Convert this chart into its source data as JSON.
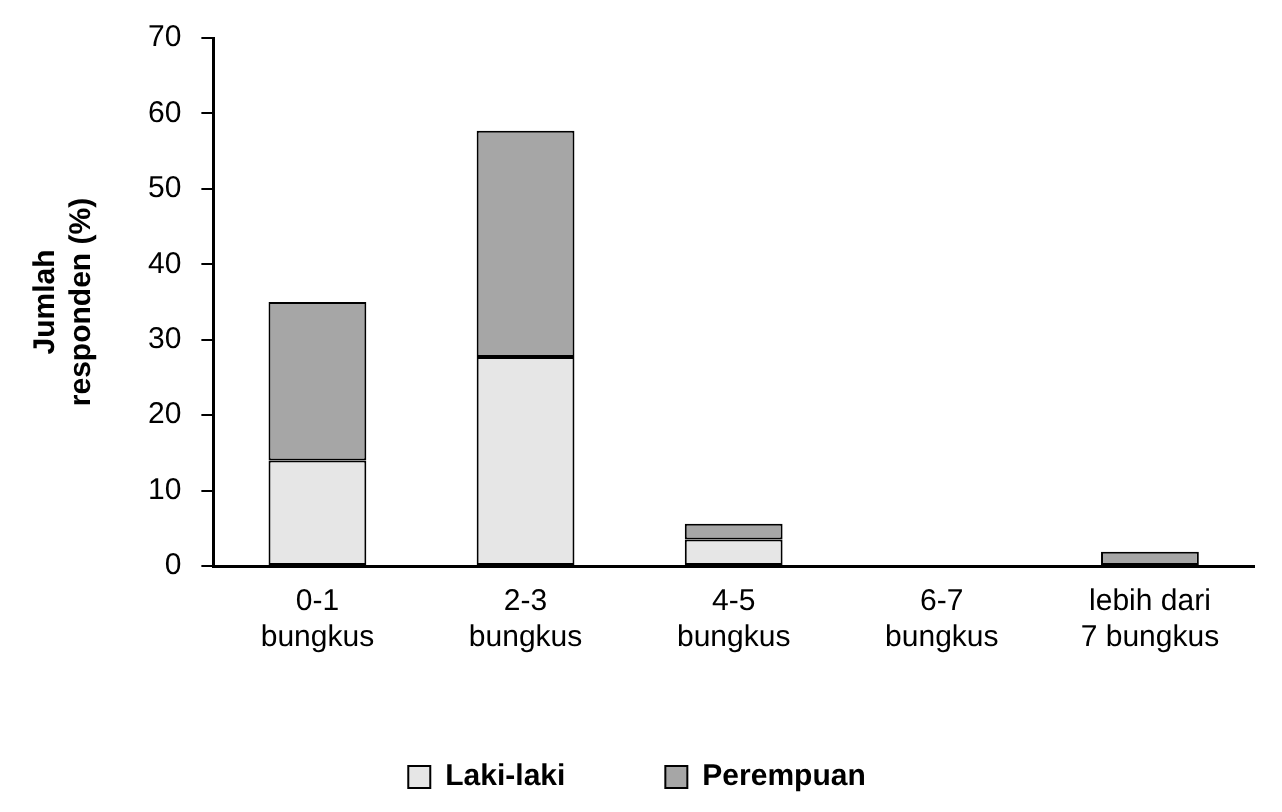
{
  "chart_data": {
    "type": "bar",
    "stacked": true,
    "ylabel": "Jumlah responden (%)",
    "categories": [
      "0-1 bungkus",
      "2-3 bungkus",
      "4-5 bungkus",
      "6-7 bungkus",
      "lebih dari 7 bungkus"
    ],
    "series": [
      {
        "name": "Laki-laki",
        "color": "#e6e6e6",
        "values": [
          14,
          27.7,
          3.5,
          0,
          0
        ]
      },
      {
        "name": "Perempuan",
        "color": "#a6a6a6",
        "values": [
          21,
          30,
          2.1,
          0,
          1.9
        ]
      }
    ],
    "ylim": [
      0,
      70
    ],
    "yticks": [
      0,
      10,
      20,
      30,
      40,
      50,
      60,
      70
    ],
    "grid": false,
    "legend": "bottom"
  }
}
